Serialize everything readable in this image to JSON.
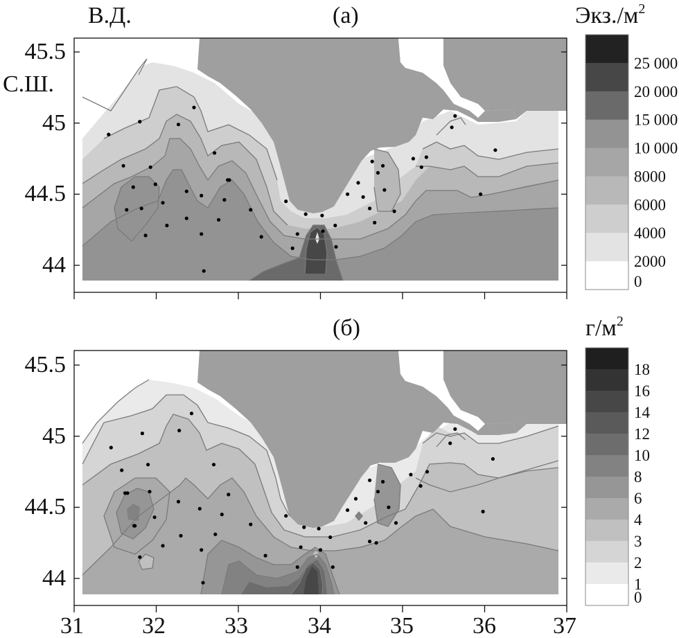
{
  "figure": {
    "lon_ticks": [
      "31",
      "32",
      "33",
      "34",
      "35",
      "36",
      "37"
    ],
    "lat_ticks": [
      "45.5",
      "45",
      "44.5",
      "44"
    ],
    "lon_label": "В.Д.",
    "lat_label": "С.Ш.",
    "lon_range": [
      31,
      37
    ],
    "lat_range": [
      43.85,
      45.65
    ]
  },
  "panels": [
    {
      "title": "(а)",
      "unit": "Экз./м",
      "unit_sup": "2",
      "legend_levels": [
        "25 000",
        "20 000",
        "15 000",
        "10 000",
        "8000",
        "6000",
        "4000",
        "2000",
        "0"
      ],
      "legend_colors": [
        "#222222",
        "#474747",
        "#6a6a6a",
        "#939393",
        "#a6a6a6",
        "#b8b8b8",
        "#cecece",
        "#e3e3e3",
        "#ffffff"
      ],
      "stations": [
        [
          31.42,
          44.92
        ],
        [
          31.8,
          45.01
        ],
        [
          32.27,
          44.99
        ],
        [
          32.46,
          45.11
        ],
        [
          31.6,
          44.7
        ],
        [
          31.93,
          44.69
        ],
        [
          32.71,
          44.79
        ],
        [
          31.72,
          44.55
        ],
        [
          31.99,
          44.57
        ],
        [
          31.82,
          44.4
        ],
        [
          32.08,
          44.44
        ],
        [
          32.37,
          44.52
        ],
        [
          32.55,
          44.49
        ],
        [
          32.89,
          44.6
        ],
        [
          31.87,
          44.21
        ],
        [
          32.13,
          44.28
        ],
        [
          32.37,
          44.33
        ],
        [
          32.55,
          44.22
        ],
        [
          32.76,
          44.32
        ],
        [
          32.83,
          44.46
        ],
        [
          33.15,
          44.39
        ],
        [
          33.28,
          44.2
        ],
        [
          33.58,
          44.45
        ],
        [
          33.66,
          44.12
        ],
        [
          33.82,
          44.36
        ],
        [
          33.72,
          44.22
        ],
        [
          34.03,
          44.24
        ],
        [
          34.02,
          44.35
        ],
        [
          34.18,
          44.28
        ],
        [
          34.19,
          44.13
        ],
        [
          34.33,
          44.5
        ],
        [
          34.46,
          44.58
        ],
        [
          34.52,
          44.48
        ],
        [
          34.6,
          44.4
        ],
        [
          34.63,
          44.73
        ],
        [
          34.7,
          44.65
        ],
        [
          34.76,
          44.7
        ],
        [
          34.78,
          44.53
        ],
        [
          34.66,
          44.3
        ],
        [
          34.9,
          44.38
        ],
        [
          35.13,
          44.75
        ],
        [
          35.23,
          44.69
        ],
        [
          35.29,
          44.76
        ],
        [
          35.6,
          44.97
        ],
        [
          35.64,
          45.05
        ],
        [
          36.13,
          44.81
        ],
        [
          35.95,
          44.5
        ],
        [
          32.58,
          43.96
        ],
        [
          32.87,
          44.6
        ],
        [
          31.64,
          44.39
        ]
      ]
    },
    {
      "title": "(б)",
      "unit": "г/м",
      "unit_sup": "2",
      "legend_levels": [
        "18",
        "16",
        "14",
        "12",
        "10",
        "8",
        "6",
        "4",
        "3",
        "2",
        "1",
        "0"
      ],
      "legend_colors": [
        "#1f1f1f",
        "#333333",
        "#474747",
        "#5a5a5a",
        "#6d6d6d",
        "#828282",
        "#969696",
        "#aaaaaa",
        "#c0c0c0",
        "#d5d5d5",
        "#eaeaea",
        "#ffffff"
      ],
      "stations": [
        [
          31.45,
          44.92
        ],
        [
          31.83,
          45.02
        ],
        [
          32.28,
          45.04
        ],
        [
          32.43,
          45.16
        ],
        [
          31.58,
          44.76
        ],
        [
          31.9,
          44.8
        ],
        [
          32.7,
          44.8
        ],
        [
          31.65,
          44.6
        ],
        [
          31.92,
          44.61
        ],
        [
          31.74,
          44.37
        ],
        [
          31.98,
          44.43
        ],
        [
          32.27,
          44.54
        ],
        [
          32.53,
          44.49
        ],
        [
          32.88,
          44.59
        ],
        [
          31.8,
          44.15
        ],
        [
          32.08,
          44.23
        ],
        [
          32.3,
          44.3
        ],
        [
          32.55,
          44.2
        ],
        [
          32.72,
          44.31
        ],
        [
          32.8,
          44.45
        ],
        [
          33.15,
          44.38
        ],
        [
          33.33,
          44.16
        ],
        [
          33.58,
          44.44
        ],
        [
          33.72,
          44.08
        ],
        [
          33.8,
          44.36
        ],
        [
          33.76,
          44.22
        ],
        [
          33.98,
          44.35
        ],
        [
          34.0,
          44.2
        ],
        [
          34.12,
          44.29
        ],
        [
          34.15,
          44.08
        ],
        [
          34.33,
          44.48
        ],
        [
          34.43,
          44.56
        ],
        [
          34.55,
          44.39
        ],
        [
          34.6,
          44.26
        ],
        [
          34.6,
          44.69
        ],
        [
          34.7,
          44.61
        ],
        [
          34.76,
          44.68
        ],
        [
          34.83,
          44.5
        ],
        [
          34.68,
          44.25
        ],
        [
          34.92,
          44.39
        ],
        [
          35.1,
          44.73
        ],
        [
          35.22,
          44.65
        ],
        [
          35.3,
          44.75
        ],
        [
          35.58,
          44.95
        ],
        [
          35.64,
          45.05
        ],
        [
          36.1,
          44.84
        ],
        [
          35.98,
          44.47
        ],
        [
          32.57,
          43.97
        ],
        [
          31.73,
          44.37
        ],
        [
          31.62,
          44.6
        ]
      ]
    }
  ]
}
